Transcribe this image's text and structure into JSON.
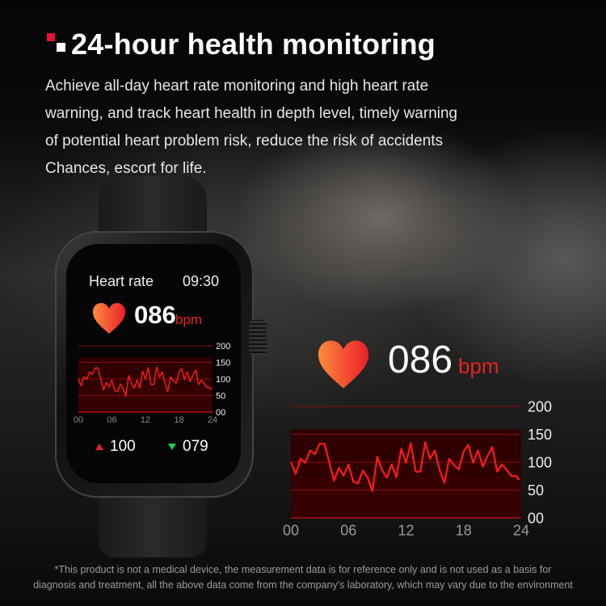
{
  "title": "24-hour health monitoring",
  "description": [
    "Achieve all-day heart rate monitoring and high heart rate",
    "warning, and track heart health in depth level, timely warning",
    "of potential heart problem risk, reduce the risk of accidents",
    "Chances, escort for life."
  ],
  "watch": {
    "screen_title": "Heart rate",
    "time": "09:30",
    "heart_rate": "086",
    "unit": "bpm",
    "max": "100",
    "min": "079",
    "icons": [
      "heart-icon",
      "arrow-up-icon",
      "arrow-down-icon"
    ]
  },
  "callout": {
    "heart_rate": "086",
    "unit": "bpm"
  },
  "colors": {
    "accent": "#e8112d",
    "line": "#ff1a1a",
    "fill": "#3a0000",
    "up": "#e8203a",
    "down": "#18d14a"
  },
  "chart_data": {
    "type": "line",
    "title": "",
    "xlabel": "",
    "ylabel": "",
    "x_ticks": [
      "00",
      "06",
      "12",
      "18",
      "24"
    ],
    "y_ticks": [
      "00",
      "50",
      "100",
      "150",
      "200"
    ],
    "xlim": [
      0,
      24
    ],
    "ylim": [
      0,
      200
    ],
    "grid": true,
    "x": [
      0,
      0.5,
      1,
      1.5,
      2,
      2.5,
      3,
      3.5,
      4.5,
      5,
      5.5,
      6,
      6.5,
      7,
      7.5,
      8,
      8.5,
      9,
      9.5,
      10,
      10.5,
      11,
      11.5,
      12,
      12.5,
      13,
      13.5,
      14,
      14.5,
      15,
      15.5,
      16,
      16.5,
      17,
      17.5,
      18,
      18.5,
      19,
      19.5,
      20,
      20.5,
      21,
      21.5,
      22,
      22.5,
      23,
      23.5,
      23.8
    ],
    "values": [
      100,
      79,
      106,
      99,
      121,
      114,
      133,
      133,
      67,
      90,
      76,
      96,
      65,
      62,
      85,
      72,
      48,
      110,
      86,
      72,
      96,
      73,
      124,
      99,
      134,
      83,
      83,
      136,
      106,
      121,
      86,
      63,
      106,
      95,
      87,
      119,
      131,
      99,
      121,
      92,
      111,
      127,
      83,
      96,
      86,
      75,
      75,
      68
    ]
  },
  "disclaimer": [
    "*This product is not a medical device, the measurement data is for reference only and is not used as a basis for",
    "diagnosis and treatment, all the above data come from the company's laboratory, which may vary due to the environment"
  ]
}
